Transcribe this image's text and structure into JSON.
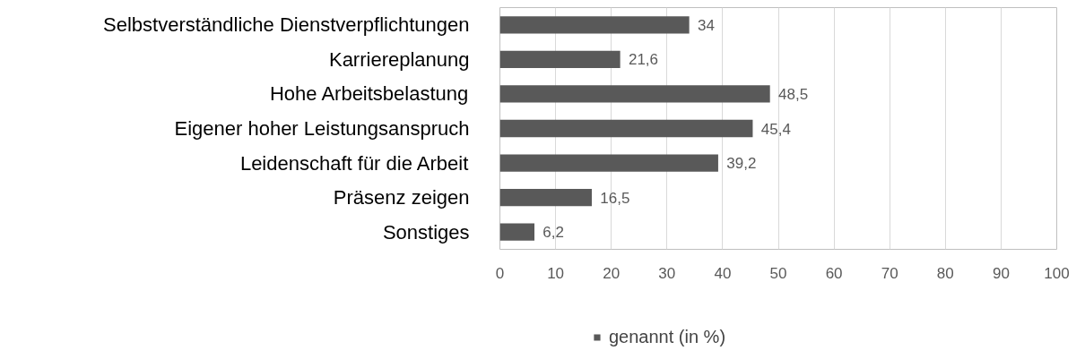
{
  "chart_data": {
    "type": "bar",
    "orientation": "horizontal",
    "categories": [
      "Selbstverständliche Dienstverpflichtungen",
      "Karriereplanung",
      "Hohe Arbeitsbelastung",
      "Eigener hoher Leistungsanspruch",
      "Leidenschaft für die Arbeit",
      "Präsenz zeigen",
      "Sonstiges"
    ],
    "series": [
      {
        "name": "genannt (in %)",
        "color": "#595959",
        "values": [
          34,
          21.6,
          48.5,
          45.4,
          39.2,
          16.5,
          6.2
        ],
        "value_labels": [
          "34",
          "21,6",
          "48,5",
          "45,4",
          "39,2",
          "16,5",
          "6,2"
        ]
      }
    ],
    "xlim": [
      0,
      100
    ],
    "xticks": [
      0,
      10,
      20,
      30,
      40,
      50,
      60,
      70,
      80,
      90,
      100
    ],
    "grid": "x",
    "legend": "bottom"
  }
}
